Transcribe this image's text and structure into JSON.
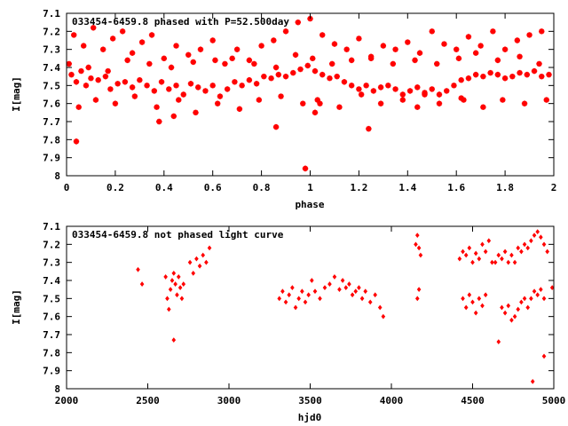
{
  "colors": {
    "points": "#ff0000",
    "axes": "#000000",
    "background": "#ffffff"
  },
  "chart_data": [
    {
      "type": "scatter",
      "title": "033454-6459.8 phased with P=52.500day",
      "xlabel": "phase",
      "ylabel": "I[mag]",
      "xlim": [
        0,
        2
      ],
      "ylim": [
        7.1,
        8.0
      ],
      "y_inverted": true,
      "grid": false,
      "xticks": [
        "0",
        "0.2",
        "0.4",
        "0.6",
        "0.8",
        "1",
        "1.2",
        "1.4",
        "1.6",
        "1.8",
        "2"
      ],
      "yticks": [
        "7.1",
        "7.2",
        "7.3",
        "7.4",
        "7.5",
        "7.6",
        "7.7",
        "7.8",
        "7.9",
        "8"
      ],
      "marker": "star",
      "x": [
        0.02,
        0.04,
        0.06,
        0.08,
        0.1,
        0.13,
        0.16,
        0.18,
        0.21,
        0.24,
        0.27,
        0.3,
        0.33,
        0.36,
        0.39,
        0.42,
        0.45,
        0.48,
        0.51,
        0.54,
        0.57,
        0.6,
        0.63,
        0.66,
        0.69,
        0.72,
        0.75,
        0.78,
        0.81,
        0.84,
        0.87,
        0.9,
        0.93,
        0.96,
        0.99,
        1.02,
        1.05,
        1.08,
        1.11,
        1.14,
        1.17,
        1.2,
        1.23,
        1.26,
        1.29,
        1.32,
        1.35,
        1.38,
        1.41,
        1.44,
        1.47,
        1.5,
        1.53,
        1.56,
        1.59,
        1.62,
        1.65,
        1.68,
        1.71,
        1.74,
        1.77,
        1.8,
        1.83,
        1.86,
        1.89,
        1.92,
        1.95,
        1.98,
        0.03,
        0.07,
        0.11,
        0.15,
        0.19,
        0.23,
        0.27,
        0.31,
        0.35,
        0.4,
        0.45,
        0.5,
        0.55,
        0.6,
        0.65,
        0.7,
        0.75,
        0.8,
        0.85,
        0.9,
        0.95,
        1.0,
        1.05,
        1.1,
        1.15,
        1.2,
        1.25,
        1.3,
        1.35,
        1.4,
        1.45,
        1.5,
        1.55,
        1.6,
        1.65,
        1.7,
        1.75,
        1.8,
        1.85,
        1.9,
        1.95,
        0.05,
        0.12,
        0.2,
        0.28,
        0.37,
        0.46,
        0.53,
        0.62,
        0.71,
        0.79,
        0.88,
        0.97,
        1.03,
        1.12,
        1.21,
        1.29,
        1.38,
        1.47,
        1.53,
        1.62,
        1.71,
        1.79,
        1.88,
        1.97,
        0.01,
        0.09,
        0.17,
        0.25,
        0.34,
        0.43,
        0.52,
        0.61,
        0.68,
        0.77,
        0.86,
        0.94,
        1.01,
        1.09,
        1.17,
        1.25,
        1.34,
        1.43,
        1.52,
        1.61,
        1.68,
        1.77,
        1.86,
        1.94,
        0.04,
        0.38,
        0.44,
        0.86,
        0.98,
        1.02,
        1.24,
        1.04,
        1.44,
        1.63
      ],
      "y": [
        7.44,
        7.48,
        7.42,
        7.5,
        7.46,
        7.47,
        7.45,
        7.52,
        7.49,
        7.48,
        7.51,
        7.47,
        7.5,
        7.53,
        7.48,
        7.52,
        7.5,
        7.55,
        7.49,
        7.51,
        7.53,
        7.5,
        7.56,
        7.52,
        7.48,
        7.5,
        7.47,
        7.49,
        7.45,
        7.46,
        7.44,
        7.45,
        7.43,
        7.41,
        7.39,
        7.42,
        7.44,
        7.46,
        7.45,
        7.48,
        7.5,
        7.52,
        7.5,
        7.53,
        7.51,
        7.5,
        7.52,
        7.55,
        7.53,
        7.51,
        7.54,
        7.52,
        7.55,
        7.53,
        7.5,
        7.47,
        7.46,
        7.44,
        7.45,
        7.43,
        7.44,
        7.46,
        7.45,
        7.43,
        7.44,
        7.42,
        7.45,
        7.44,
        7.22,
        7.28,
        7.18,
        7.3,
        7.24,
        7.2,
        7.32,
        7.26,
        7.22,
        7.35,
        7.28,
        7.33,
        7.3,
        7.25,
        7.38,
        7.3,
        7.36,
        7.28,
        7.25,
        7.2,
        7.15,
        7.13,
        7.22,
        7.27,
        7.3,
        7.24,
        7.35,
        7.28,
        7.3,
        7.26,
        7.32,
        7.2,
        7.27,
        7.3,
        7.23,
        7.28,
        7.2,
        7.3,
        7.25,
        7.22,
        7.2,
        7.62,
        7.58,
        7.6,
        7.56,
        7.62,
        7.58,
        7.65,
        7.6,
        7.63,
        7.58,
        7.56,
        7.6,
        7.58,
        7.62,
        7.55,
        7.6,
        7.58,
        7.55,
        7.6,
        7.57,
        7.62,
        7.58,
        7.6,
        7.58,
        7.38,
        7.4,
        7.42,
        7.36,
        7.38,
        7.4,
        7.37,
        7.36,
        7.35,
        7.38,
        7.4,
        7.33,
        7.35,
        7.38,
        7.36,
        7.34,
        7.38,
        7.36,
        7.38,
        7.35,
        7.32,
        7.36,
        7.34,
        7.38,
        7.81,
        7.7,
        7.67,
        7.73,
        7.96,
        7.65,
        7.74,
        7.6,
        7.62,
        7.58
      ]
    },
    {
      "type": "scatter",
      "title": "033454-6459.8 not phased light curve",
      "xlabel": "hjd0",
      "ylabel": "I[mag]",
      "xlim": [
        2000,
        5000
      ],
      "ylim": [
        7.1,
        8.0
      ],
      "y_inverted": true,
      "grid": false,
      "xticks": [
        "2000",
        "2500",
        "3000",
        "3500",
        "4000",
        "4500",
        "5000"
      ],
      "yticks": [
        "7.1",
        "7.2",
        "7.3",
        "7.4",
        "7.5",
        "7.6",
        "7.7",
        "7.8",
        "7.9",
        "8"
      ],
      "marker": "diamond",
      "x": [
        2440,
        2465,
        2610,
        2620,
        2630,
        2640,
        2650,
        2660,
        2670,
        2680,
        2690,
        2700,
        2710,
        2720,
        2660,
        2760,
        2780,
        2800,
        2820,
        2840,
        2860,
        2880,
        3310,
        3330,
        3350,
        3370,
        3390,
        3410,
        3430,
        3450,
        3470,
        3490,
        3510,
        3530,
        3560,
        3590,
        3620,
        3650,
        3680,
        3700,
        3720,
        3740,
        3760,
        3780,
        3800,
        3820,
        3840,
        3870,
        3900,
        3930,
        3950,
        4150,
        4160,
        4170,
        4180,
        4170,
        4160,
        4420,
        4440,
        4460,
        4480,
        4500,
        4520,
        4540,
        4560,
        4580,
        4600,
        4620,
        4440,
        4460,
        4480,
        4500,
        4520,
        4540,
        4560,
        4580,
        4640,
        4660,
        4680,
        4700,
        4720,
        4740,
        4760,
        4780,
        4800,
        4820,
        4840,
        4860,
        4880,
        4900,
        4920,
        4940,
        4960,
        4680,
        4700,
        4720,
        4740,
        4760,
        4780,
        4800,
        4820,
        4840,
        4860,
        4880,
        4900,
        4920,
        4940,
        4660,
        4870,
        4940,
        4990
      ],
      "y": [
        7.34,
        7.42,
        7.38,
        7.5,
        7.56,
        7.45,
        7.4,
        7.36,
        7.42,
        7.48,
        7.38,
        7.44,
        7.5,
        7.42,
        7.73,
        7.3,
        7.36,
        7.28,
        7.32,
        7.26,
        7.3,
        7.22,
        7.5,
        7.46,
        7.52,
        7.48,
        7.44,
        7.55,
        7.5,
        7.46,
        7.52,
        7.48,
        7.4,
        7.46,
        7.5,
        7.44,
        7.42,
        7.38,
        7.45,
        7.4,
        7.44,
        7.42,
        7.48,
        7.46,
        7.44,
        7.5,
        7.46,
        7.52,
        7.48,
        7.55,
        7.6,
        7.2,
        7.15,
        7.22,
        7.26,
        7.45,
        7.5,
        7.28,
        7.24,
        7.26,
        7.22,
        7.3,
        7.25,
        7.28,
        7.2,
        7.24,
        7.18,
        7.3,
        7.5,
        7.55,
        7.48,
        7.52,
        7.58,
        7.5,
        7.54,
        7.48,
        7.3,
        7.26,
        7.28,
        7.24,
        7.3,
        7.26,
        7.3,
        7.22,
        7.24,
        7.2,
        7.22,
        7.18,
        7.15,
        7.13,
        7.16,
        7.2,
        7.24,
        7.55,
        7.58,
        7.54,
        7.62,
        7.6,
        7.56,
        7.52,
        7.5,
        7.55,
        7.5,
        7.46,
        7.48,
        7.45,
        7.5,
        7.74,
        7.96,
        7.82,
        7.44
      ]
    }
  ]
}
